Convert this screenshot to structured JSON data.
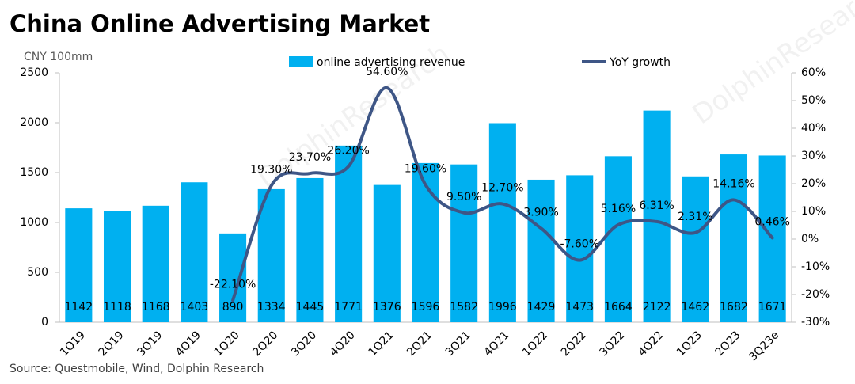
{
  "chart_data": {
    "type": "bar_line",
    "title": "China Online Advertising Market",
    "y_axis_label": "CNY 100mm",
    "source": "Source:   Questmobile, Wind, Dolphin Research",
    "watermark": "DolphinResearch",
    "categories": [
      "1Q19",
      "2Q19",
      "3Q19",
      "4Q19",
      "1Q20",
      "2Q20",
      "3Q20",
      "4Q20",
      "1Q21",
      "2Q21",
      "3Q21",
      "4Q21",
      "1Q22",
      "2Q22",
      "3Q22",
      "4Q22",
      "1Q23",
      "2Q23",
      "3Q23e"
    ],
    "series": [
      {
        "name": "online advertising revenue",
        "type": "bar",
        "color": "#00b0f0",
        "values": [
          1142,
          1118,
          1168,
          1403,
          890,
          1334,
          1445,
          1771,
          1376,
          1596,
          1582,
          1996,
          1429,
          1473,
          1664,
          2122,
          1462,
          1682,
          1671
        ]
      },
      {
        "name": "YoY growth",
        "type": "line",
        "axis": "y2",
        "color": "#3e5686",
        "values": [
          null,
          null,
          null,
          null,
          -22.1,
          19.3,
          23.7,
          26.2,
          54.6,
          19.6,
          9.5,
          12.7,
          3.9,
          -7.6,
          5.16,
          6.31,
          2.31,
          14.16,
          0.46
        ],
        "value_labels": [
          null,
          null,
          null,
          null,
          "-22.10%",
          "19.30%",
          "23.70%",
          "26.20%",
          "54.60%",
          "19.60%",
          "9.50%",
          "12.70%",
          "3.90%",
          "-7.60%",
          "5.16%",
          "6.31%",
          "2.31%",
          "14.16%",
          "0.46%"
        ]
      }
    ],
    "ylim": [
      0,
      2500
    ],
    "yticks": [
      0,
      500,
      1000,
      1500,
      2000,
      2500
    ],
    "y2lim": [
      -30,
      60
    ],
    "y2ticks": [
      {
        "value": -30,
        "label": "-30%"
      },
      {
        "value": -20,
        "label": "-20%"
      },
      {
        "value": -10,
        "label": "-10%"
      },
      {
        "value": 0,
        "label": "0%"
      },
      {
        "value": 10,
        "label": "10%"
      },
      {
        "value": 20,
        "label": "20%"
      },
      {
        "value": 30,
        "label": "30%"
      },
      {
        "value": 40,
        "label": "40%"
      },
      {
        "value": 50,
        "label": "50%"
      },
      {
        "value": 60,
        "label": "60%"
      }
    ],
    "grid": false
  }
}
